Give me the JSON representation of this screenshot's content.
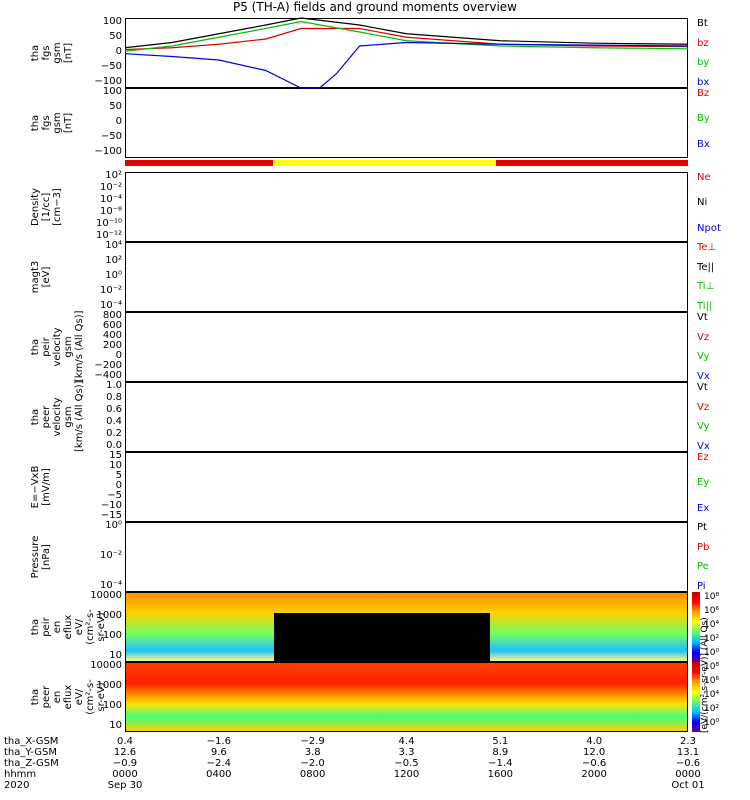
{
  "title": "P5 (TH-A) fields and ground moments overview",
  "panels": [
    {
      "id": "fgs",
      "ylabel": "tha\nfgs\ngsm\n[nT]",
      "ticks": [
        "100",
        "50",
        "0",
        "−50",
        "−100"
      ],
      "legend": [
        {
          "t": "Bt",
          "c": "#000000"
        },
        {
          "t": "bz",
          "c": "#e00000"
        },
        {
          "t": "by",
          "c": "#00c000"
        },
        {
          "t": "bx",
          "c": "#0000e0"
        }
      ]
    },
    {
      "id": "fgs_l",
      "ylabel": "tha\nfgs\ngsm\n[nT]",
      "ticks": [
        "100",
        "50",
        "0",
        "−50",
        "−100"
      ],
      "legend": [
        {
          "t": "Bz",
          "c": "#e00000"
        },
        {
          "t": "By",
          "c": "#00c000"
        },
        {
          "t": "Bx",
          "c": "#0000e0"
        }
      ]
    },
    {
      "id": "dens",
      "ylabel": "Density\n[1/cc]\n[cm−3]",
      "ticks": [
        "10²",
        "10⁻²",
        "10⁻⁴",
        "10⁻⁸",
        "10⁻¹⁰",
        "10⁻¹²"
      ],
      "legend": [
        {
          "t": "Ne",
          "c": "#e00000"
        },
        {
          "t": "Ni",
          "c": "#000000"
        },
        {
          "t": "Npot",
          "c": "#0000e0"
        }
      ]
    },
    {
      "id": "temp",
      "ylabel": "magt3\n[eV]",
      "ticks": [
        "10⁴",
        "10²",
        "10⁰",
        "10⁻²",
        "10⁻⁴"
      ],
      "legend": [
        {
          "t": "Te⊥",
          "c": "#e00000"
        },
        {
          "t": "Te||",
          "c": "#000000"
        },
        {
          "t": "Ti⊥",
          "c": "#00c000"
        },
        {
          "t": "Ti||",
          "c": "#00c000"
        }
      ]
    },
    {
      "id": "vi",
      "ylabel": "tha\npeir\nvelocity\ngsm\n[km/s (All Qs)]",
      "ticks": [
        "800",
        "600",
        "400",
        "200",
        "0",
        "−200",
        "−400"
      ],
      "legend": [
        {
          "t": "Vt",
          "c": "#000000"
        },
        {
          "t": "Vz",
          "c": "#e00000"
        },
        {
          "t": "Vy",
          "c": "#00c000"
        },
        {
          "t": "Vx",
          "c": "#0000e0"
        }
      ]
    },
    {
      "id": "ve",
      "ylabel": "tha\npeer\nvelocity\ngsm\n[km/s (All Qs)]",
      "ticks": [
        "1.0",
        "0.8",
        "0.6",
        "0.4",
        "0.2",
        "0.0"
      ],
      "legend": [
        {
          "t": "Vt",
          "c": "#000000"
        },
        {
          "t": "Vz",
          "c": "#e00000"
        },
        {
          "t": "Vy",
          "c": "#00c000"
        },
        {
          "t": "Vx",
          "c": "#0000e0"
        }
      ]
    },
    {
      "id": "efld",
      "ylabel": "E=−VxB\n[mV/m]",
      "ticks": [
        "15",
        "10",
        "5",
        "0",
        "−5",
        "−10",
        "−15"
      ],
      "legend": [
        {
          "t": "Ez",
          "c": "#e00000"
        },
        {
          "t": "Ey",
          "c": "#00c000"
        },
        {
          "t": "Ex",
          "c": "#0000e0"
        }
      ]
    },
    {
      "id": "press",
      "ylabel": "Pressure\n[nPa]",
      "ticks": [
        "10⁰",
        "10⁻²",
        "10⁻⁴"
      ],
      "legend": [
        {
          "t": "Pt",
          "c": "#000000"
        },
        {
          "t": "Pb",
          "c": "#e00000"
        },
        {
          "t": "Pe",
          "c": "#00c000"
        },
        {
          "t": "Pi",
          "c": "#0000e0"
        }
      ]
    },
    {
      "id": "ispec",
      "ylabel": "tha\npeir\nen\neflux\neV/\n(cm²-s-\nsr-eV)",
      "ticks": [
        "10000",
        "1000",
        "100",
        "10"
      ],
      "legend": []
    },
    {
      "id": "espec",
      "ylabel": "tha\npeer\nen\neflux\neV/\n(cm²-s-\nsr-eV)",
      "ticks": [
        "10000",
        "1000",
        "100",
        "10"
      ],
      "legend": []
    }
  ],
  "colorbar": {
    "label": "[eV/(cm²-s-sr-eV)] (All Qs)",
    "ticks": [
      "10⁸",
      "10⁶",
      "10⁴",
      "10²",
      "10⁰",
      "10⁸",
      "10⁶",
      "10⁴",
      "10²",
      "10⁰"
    ]
  },
  "bottom": {
    "rows": [
      "tha_X-GSM",
      "tha_Y-GSM",
      "tha_Z-GSM",
      "hhmm",
      "2020"
    ],
    "columns": [
      {
        "x": "0.4",
        "y": "12.6",
        "z": "−0.9",
        "t": "0000",
        "d": "Sep 30"
      },
      {
        "x": "−1.6",
        "y": "9.6",
        "z": "−2.4",
        "t": "0400",
        "d": ""
      },
      {
        "x": "−2.9",
        "y": "3.8",
        "z": "−2.0",
        "t": "0800",
        "d": ""
      },
      {
        "x": "4.4",
        "y": "3.3",
        "z": "−0.5",
        "t": "1200",
        "d": ""
      },
      {
        "x": "5.1",
        "y": "8.9",
        "z": "−1.4",
        "t": "1600",
        "d": ""
      },
      {
        "x": "4.0",
        "y": "12.0",
        "z": "−0.6",
        "t": "2000",
        "d": ""
      },
      {
        "x": "2.3",
        "y": "13.1",
        "z": "−0.6",
        "t": "0000",
        "d": "Oct 01"
      }
    ]
  },
  "chart_data": {
    "type": "line",
    "title": "P5 (TH-A) fields and ground moments overview",
    "x_hours": [
      0,
      4,
      8,
      12,
      16,
      20,
      24
    ],
    "x_labels": [
      "0000",
      "0400",
      "0800",
      "1200",
      "1600",
      "2000",
      "0000"
    ],
    "bar_segments": [
      {
        "from": 0,
        "to": 6.3,
        "color": "#e00000"
      },
      {
        "from": 6.3,
        "to": 15.8,
        "color": "#ffff00"
      },
      {
        "from": 15.8,
        "to": 24,
        "color": "#e00000"
      }
    ],
    "series": [
      {
        "panel": "fgs",
        "name": "Bt",
        "color": "#000000",
        "x": [
          0,
          2,
          4,
          6,
          7.5,
          10,
          12,
          16,
          20,
          24
        ],
        "y": [
          15,
          30,
          55,
          80,
          100,
          80,
          55,
          35,
          28,
          25
        ]
      },
      {
        "panel": "fgs",
        "name": "bz",
        "color": "#e00000",
        "x": [
          0,
          2,
          4,
          6,
          7.5,
          10,
          12,
          16,
          20,
          24
        ],
        "y": [
          10,
          15,
          25,
          40,
          70,
          70,
          45,
          25,
          20,
          18
        ]
      },
      {
        "panel": "fgs",
        "name": "by",
        "color": "#00c000",
        "x": [
          0,
          2,
          4,
          6,
          7.5,
          10,
          12,
          16,
          20,
          24
        ],
        "y": [
          5,
          20,
          45,
          70,
          90,
          60,
          35,
          20,
          15,
          12
        ]
      },
      {
        "panel": "fgs",
        "name": "bx",
        "color": "#0000e0",
        "x": [
          0,
          2,
          4,
          6,
          7.5,
          8.3,
          9,
          10,
          12,
          16,
          24
        ],
        "y": [
          -2,
          -10,
          -20,
          -50,
          -100,
          -100,
          -60,
          20,
          30,
          25,
          20
        ]
      }
    ]
  }
}
